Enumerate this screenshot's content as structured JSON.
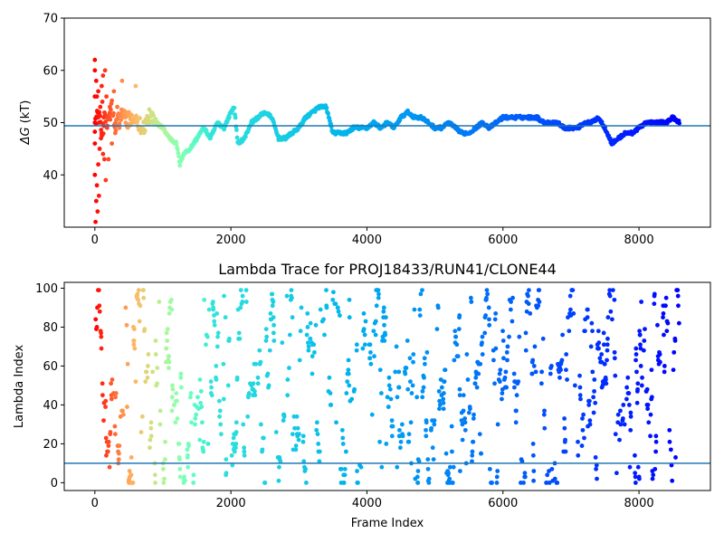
{
  "chart_data": [
    {
      "type": "scatter",
      "title": "",
      "xlabel": "",
      "ylabel_parts": {
        "symbol": "ΔG",
        "unit": "(kT)"
      },
      "xlim": [
        -450,
        9050
      ],
      "ylim": [
        30,
        70
      ],
      "xticks": [
        0,
        2000,
        4000,
        6000,
        8000
      ],
      "yticks": [
        40,
        50,
        60,
        70
      ],
      "reference_line": {
        "y": 49.4,
        "color": "#1f77b4"
      },
      "colormap": "rainbow (red at start → violet at end)",
      "series_trace": {
        "x": [
          0,
          50,
          100,
          150,
          200,
          250,
          300,
          400,
          500,
          600,
          700,
          800,
          900,
          1000,
          1100,
          1200,
          1250,
          1300,
          1400,
          1500,
          1600,
          1700,
          1800,
          1900,
          2000,
          2050,
          2100,
          2200,
          2300,
          2400,
          2500,
          2600,
          2700,
          2800,
          2900,
          3000,
          3100,
          3200,
          3300,
          3400,
          3500,
          3600,
          3700,
          3800,
          3900,
          4000,
          4100,
          4200,
          4300,
          4400,
          4500,
          4600,
          4700,
          4800,
          4900,
          5000,
          5100,
          5200,
          5300,
          5400,
          5500,
          5600,
          5700,
          5800,
          5900,
          6000,
          6100,
          6200,
          6300,
          6400,
          6500,
          6600,
          6700,
          6800,
          6900,
          7000,
          7100,
          7200,
          7300,
          7400,
          7500,
          7600,
          7700,
          7800,
          7900,
          8000,
          8100,
          8200,
          8300,
          8400,
          8500,
          8600
        ],
        "y": [
          50,
          52,
          48,
          51,
          50,
          53,
          49,
          52,
          50,
          51,
          49,
          51,
          50,
          49,
          47,
          46,
          42,
          44,
          45,
          47,
          49,
          47,
          50,
          49,
          52,
          53,
          46,
          47,
          50,
          51,
          52,
          51,
          47,
          47,
          48,
          49,
          51,
          52,
          53,
          53,
          48,
          48,
          48,
          49,
          49,
          49,
          50,
          49,
          50,
          49,
          51,
          52,
          51,
          51,
          50,
          49,
          49,
          50,
          49,
          48,
          48,
          49,
          50,
          49,
          50,
          51,
          51,
          51,
          51,
          51,
          51,
          50,
          50,
          50,
          49,
          49,
          49,
          50,
          50,
          51,
          49,
          46,
          47,
          48,
          48,
          49,
          50,
          50,
          50,
          50,
          51,
          50
        ]
      },
      "early_scatter": {
        "x": [
          0,
          0,
          0,
          0,
          0,
          0,
          10,
          20,
          20,
          30,
          30,
          40,
          40,
          50,
          50,
          60,
          60,
          70,
          80,
          90,
          100,
          100,
          110,
          120,
          120,
          130,
          140,
          150,
          160,
          170,
          180,
          200,
          220,
          250,
          280,
          300,
          330,
          360,
          400,
          450,
          500,
          550,
          600
        ],
        "y": [
          62,
          60,
          55,
          50,
          46,
          40,
          31,
          35,
          58,
          38,
          55,
          33,
          52,
          42,
          56,
          36,
          50,
          45,
          53,
          47,
          57,
          48,
          54,
          44,
          59,
          51,
          43,
          60,
          39,
          55,
          49,
          43,
          53,
          46,
          56,
          48,
          53,
          49,
          58,
          51,
          52,
          50,
          57
        ]
      }
    },
    {
      "type": "scatter",
      "title": "Lambda Trace for PROJ18433/RUN41/CLONE44",
      "xlabel": "Frame Index",
      "ylabel": "Lambda Index",
      "xlim": [
        -450,
        9050
      ],
      "ylim": [
        -4,
        103
      ],
      "xticks": [
        0,
        2000,
        4000,
        6000,
        8000
      ],
      "yticks": [
        0,
        20,
        40,
        60,
        80,
        100
      ],
      "reference_line": {
        "y": 10,
        "color": "#1f77b4"
      },
      "frame_count": 8600,
      "lambda_max": 99,
      "colormap": "rainbow (red at start → violet at end)"
    }
  ]
}
